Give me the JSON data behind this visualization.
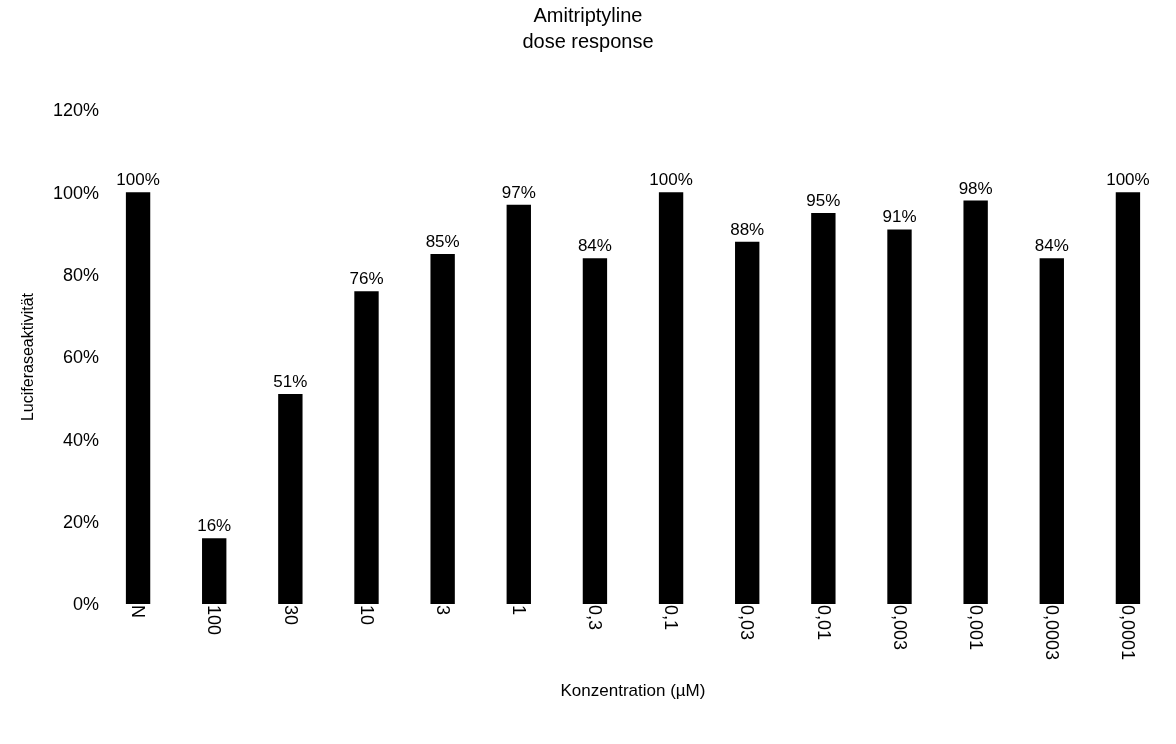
{
  "chart_data": {
    "type": "bar",
    "title": "Amitriptyline\ndose response",
    "xlabel": "Konzentration (µM)",
    "ylabel": "Luciferaseaktivität",
    "categories": [
      "N",
      "100",
      "30",
      "10",
      "3",
      "1",
      "0,3",
      "0,1",
      "0,03",
      "0,01",
      "0,003",
      "0,001",
      "0,0003",
      "0,0001"
    ],
    "values": [
      100,
      16,
      51,
      76,
      85,
      97,
      84,
      100,
      88,
      95,
      91,
      98,
      84,
      100
    ],
    "value_labels": [
      "100%",
      "16%",
      "51%",
      "76%",
      "85%",
      "97%",
      "84%",
      "100%",
      "88%",
      "95%",
      "91%",
      "98%",
      "84%",
      "100%"
    ],
    "color": "#000000",
    "ylim": [
      0,
      120
    ],
    "yticks": [
      {
        "value": 0,
        "label": "0%"
      },
      {
        "value": 20,
        "label": "20%"
      },
      {
        "value": 40,
        "label": "40%"
      },
      {
        "value": 60,
        "label": "60%"
      },
      {
        "value": 80,
        "label": "80%"
      },
      {
        "value": 100,
        "label": "100%"
      },
      {
        "value": 120,
        "label": "120%"
      }
    ],
    "legend": false
  }
}
